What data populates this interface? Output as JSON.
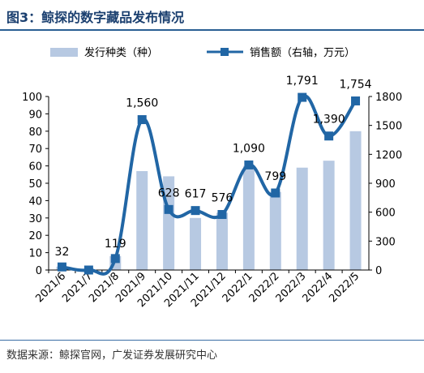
{
  "title": "图3：鲸探的数字藏品发布情况",
  "source": "数据来源：鲸探官网，广发证券发展研究中心",
  "chart_data": {
    "type": "bar+line",
    "categories": [
      "2021/6",
      "2021/7",
      "2021/8",
      "2021/9",
      "2021/10",
      "2021/11",
      "2021/12",
      "2022/1",
      "2022/2",
      "2022/3",
      "2022/4",
      "2022/5"
    ],
    "series": [
      {
        "name": "发行种类（种）",
        "kind": "bar",
        "axis": "left",
        "color": "#b7c9e2",
        "values": [
          2,
          0,
          8,
          57,
          54,
          30,
          33,
          60,
          45,
          59,
          63,
          80
        ]
      },
      {
        "name": "销售额（右轴，万元）",
        "kind": "line",
        "axis": "right",
        "color": "#2166a5",
        "values": [
          32,
          0,
          119,
          1560,
          628,
          617,
          576,
          1090,
          799,
          1791,
          1390,
          1754
        ],
        "labels": [
          "32",
          "",
          "119",
          "1,560",
          "628",
          "617",
          "576",
          "1,090",
          "799",
          "1,791",
          "1,390",
          "1,754"
        ]
      }
    ],
    "y_left": {
      "min": 0,
      "max": 100,
      "ticks": [
        "0",
        "10",
        "20",
        "30",
        "40",
        "50",
        "60",
        "70",
        "80",
        "90",
        "100"
      ]
    },
    "y_right": {
      "min": 0,
      "max": 1800,
      "ticks": [
        "0",
        "300",
        "600",
        "900",
        "1200",
        "1500",
        "1800"
      ]
    },
    "legend": "top-center",
    "grid": false
  }
}
